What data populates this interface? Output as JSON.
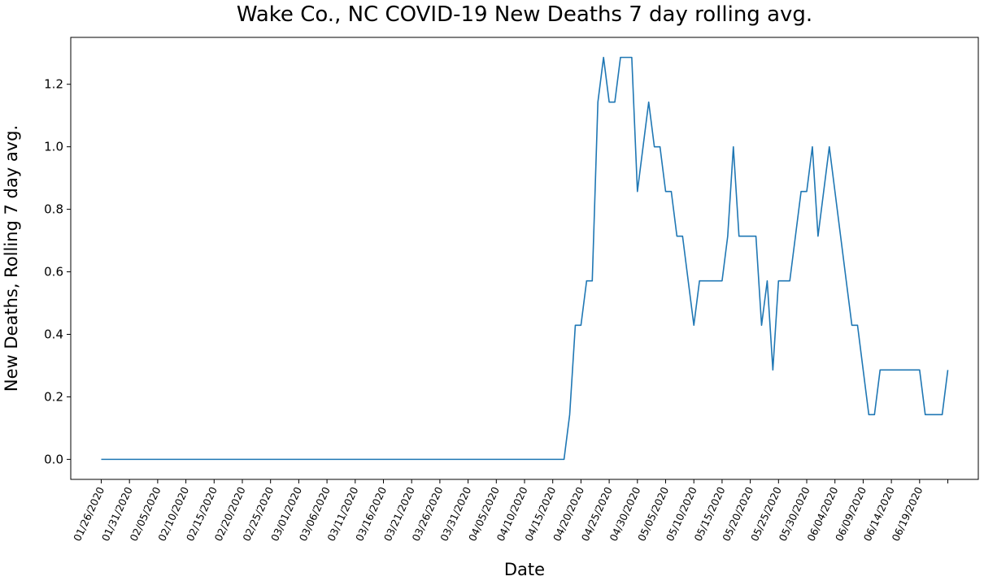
{
  "chart_data": {
    "type": "line",
    "title": "Wake Co., NC COVID-19 New Deaths 7 day rolling avg.",
    "xlabel": "Date",
    "ylabel": "New Deaths, Rolling 7 day avg.",
    "x_start": "01/26/2020",
    "x_tick_labels": [
      "01/26/2020",
      "01/31/2020",
      "02/05/2020",
      "02/10/2020",
      "02/15/2020",
      "02/20/2020",
      "02/25/2020",
      "03/01/2020",
      "03/06/2020",
      "03/11/2020",
      "03/16/2020",
      "03/21/2020",
      "03/26/2020",
      "03/31/2020",
      "04/05/2020",
      "04/10/2020",
      "04/15/2020",
      "04/20/2020",
      "04/25/2020",
      "04/30/2020",
      "05/05/2020",
      "05/10/2020",
      "05/15/2020",
      "05/20/2020",
      "05/25/2020",
      "05/30/2020",
      "06/04/2020",
      "06/09/2020",
      "06/14/2020",
      "06/19/2020"
    ],
    "yticks": [
      "0.0",
      "0.2",
      "0.4",
      "0.6",
      "0.8",
      "1.0",
      "1.2"
    ],
    "ylim": [
      -0.064,
      1.35
    ],
    "grid": false,
    "color": "#1f77b4",
    "series": [
      {
        "values": [
          0,
          0,
          0,
          0,
          0,
          0,
          0,
          0,
          0,
          0,
          0,
          0,
          0,
          0,
          0,
          0,
          0,
          0,
          0,
          0,
          0,
          0,
          0,
          0,
          0,
          0,
          0,
          0,
          0,
          0,
          0,
          0,
          0,
          0,
          0,
          0,
          0,
          0,
          0,
          0,
          0,
          0,
          0,
          0,
          0,
          0,
          0,
          0,
          0,
          0,
          0,
          0,
          0,
          0,
          0,
          0,
          0,
          0,
          0,
          0,
          0,
          0,
          0,
          0,
          0,
          0,
          0,
          0,
          0,
          0,
          0,
          0,
          0,
          0,
          0,
          0,
          0,
          0,
          0,
          0,
          0,
          0,
          0,
          0.143,
          0.429,
          0.429,
          0.571,
          0.571,
          1.143,
          1.286,
          1.143,
          1.143,
          1.286,
          1.286,
          1.286,
          0.857,
          1.0,
          1.143,
          1.0,
          1.0,
          0.857,
          0.857,
          0.714,
          0.714,
          0.571,
          0.429,
          0.571,
          0.571,
          0.571,
          0.571,
          0.571,
          0.714,
          1.0,
          0.714,
          0.714,
          0.714,
          0.714,
          0.429,
          0.571,
          0.286,
          0.571,
          0.571,
          0.571,
          0.714,
          0.857,
          0.857,
          1.0,
          0.714,
          0.857,
          1.0,
          0.857,
          0.714,
          0.571,
          0.429,
          0.429,
          0.286,
          0.143,
          0.143,
          0.286,
          0.286,
          0.286,
          0.286,
          0.286,
          0.286,
          0.286,
          0.286,
          0.143,
          0.143,
          0.143,
          0.143,
          0.286
        ]
      }
    ]
  }
}
